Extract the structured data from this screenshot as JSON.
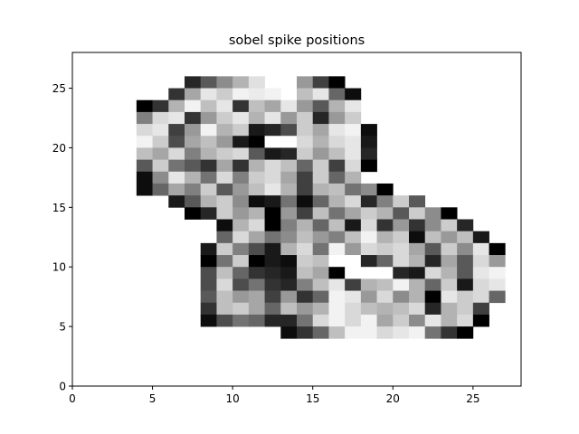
{
  "chart_data": {
    "type": "heatmap",
    "title": "sobel spike positions",
    "xlabel": "",
    "ylabel": "",
    "xlim": [
      0,
      28
    ],
    "ylim": [
      0,
      28
    ],
    "x_ticks": [
      0,
      5,
      10,
      15,
      20,
      25
    ],
    "y_ticks": [
      0,
      5,
      10,
      15,
      20,
      25
    ],
    "grid": false,
    "colormap": "gray",
    "value_meaning": "cell darkness, 0 = white, 1 = black",
    "cells": [
      [
        7,
        25,
        0.85
      ],
      [
        8,
        25,
        0.65
      ],
      [
        9,
        25,
        0.45
      ],
      [
        10,
        25,
        0.3
      ],
      [
        11,
        25,
        0.12
      ],
      [
        14,
        25,
        0.4
      ],
      [
        15,
        25,
        0.75
      ],
      [
        16,
        25,
        1.0
      ],
      [
        6,
        24,
        0.8
      ],
      [
        7,
        24,
        0.35
      ],
      [
        8,
        24,
        0.1
      ],
      [
        9,
        24,
        0.2
      ],
      [
        10,
        24,
        0.05
      ],
      [
        11,
        24,
        0.08
      ],
      [
        12,
        24,
        0.05
      ],
      [
        14,
        24,
        0.25
      ],
      [
        15,
        24,
        0.1
      ],
      [
        16,
        24,
        0.6
      ],
      [
        17,
        24,
        0.95
      ],
      [
        4,
        23,
        1.0
      ],
      [
        5,
        23,
        0.8
      ],
      [
        6,
        23,
        0.3
      ],
      [
        7,
        23,
        0.05
      ],
      [
        8,
        23,
        0.25
      ],
      [
        9,
        23,
        0.1
      ],
      [
        10,
        23,
        0.8
      ],
      [
        11,
        23,
        0.25
      ],
      [
        12,
        23,
        0.35
      ],
      [
        13,
        23,
        0.1
      ],
      [
        14,
        23,
        0.4
      ],
      [
        15,
        23,
        0.65
      ],
      [
        16,
        23,
        0.3
      ],
      [
        17,
        23,
        0.1
      ],
      [
        4,
        22,
        0.5
      ],
      [
        5,
        22,
        0.15
      ],
      [
        6,
        22,
        0.1
      ],
      [
        7,
        22,
        0.8
      ],
      [
        8,
        22,
        0.4
      ],
      [
        9,
        22,
        0.2
      ],
      [
        10,
        22,
        0.1
      ],
      [
        11,
        22,
        0.3
      ],
      [
        12,
        22,
        0.1
      ],
      [
        13,
        22,
        0.4
      ],
      [
        14,
        22,
        0.2
      ],
      [
        15,
        22,
        0.85
      ],
      [
        16,
        22,
        0.4
      ],
      [
        17,
        22,
        0.2
      ],
      [
        4,
        21,
        0.15
      ],
      [
        5,
        21,
        0.1
      ],
      [
        6,
        21,
        0.75
      ],
      [
        7,
        21,
        0.4
      ],
      [
        8,
        21,
        0.05
      ],
      [
        9,
        21,
        0.3
      ],
      [
        10,
        21,
        0.2
      ],
      [
        11,
        21,
        0.9
      ],
      [
        12,
        21,
        0.85
      ],
      [
        13,
        21,
        0.7
      ],
      [
        14,
        21,
        0.2
      ],
      [
        15,
        21,
        0.35
      ],
      [
        16,
        21,
        0.1
      ],
      [
        17,
        21,
        0.05
      ],
      [
        18,
        21,
        0.95
      ],
      [
        4,
        20,
        0.05
      ],
      [
        5,
        20,
        0.2
      ],
      [
        6,
        20,
        0.7
      ],
      [
        7,
        20,
        0.35
      ],
      [
        8,
        20,
        0.25
      ],
      [
        9,
        20,
        0.4
      ],
      [
        10,
        20,
        0.9
      ],
      [
        11,
        20,
        1.0
      ],
      [
        12,
        20,
        0.0
      ],
      [
        13,
        20,
        0.0
      ],
      [
        14,
        20,
        0.15
      ],
      [
        15,
        20,
        0.3
      ],
      [
        16,
        20,
        0.15
      ],
      [
        17,
        20,
        0.1
      ],
      [
        18,
        20,
        0.9
      ],
      [
        4,
        19,
        0.25
      ],
      [
        5,
        19,
        0.35
      ],
      [
        6,
        19,
        0.15
      ],
      [
        7,
        19,
        0.5
      ],
      [
        8,
        19,
        0.3
      ],
      [
        9,
        19,
        0.2
      ],
      [
        10,
        19,
        0.15
      ],
      [
        11,
        19,
        0.65
      ],
      [
        12,
        19,
        0.9
      ],
      [
        13,
        19,
        0.85
      ],
      [
        14,
        19,
        0.2
      ],
      [
        15,
        19,
        0.4
      ],
      [
        16,
        19,
        0.25
      ],
      [
        17,
        19,
        0.1
      ],
      [
        18,
        19,
        0.85
      ],
      [
        4,
        18,
        0.65
      ],
      [
        5,
        18,
        0.2
      ],
      [
        6,
        18,
        0.55
      ],
      [
        7,
        18,
        0.65
      ],
      [
        8,
        18,
        0.8
      ],
      [
        9,
        18,
        0.35
      ],
      [
        10,
        18,
        0.8
      ],
      [
        11,
        18,
        0.3
      ],
      [
        12,
        18,
        0.15
      ],
      [
        13,
        18,
        0.25
      ],
      [
        14,
        18,
        0.6
      ],
      [
        15,
        18,
        0.2
      ],
      [
        16,
        18,
        0.75
      ],
      [
        17,
        18,
        0.15
      ],
      [
        18,
        18,
        1.0
      ],
      [
        4,
        17,
        0.95
      ],
      [
        5,
        17,
        0.45
      ],
      [
        6,
        17,
        0.1
      ],
      [
        7,
        17,
        0.3
      ],
      [
        8,
        17,
        0.55
      ],
      [
        9,
        17,
        0.15
      ],
      [
        10,
        17,
        0.5
      ],
      [
        11,
        17,
        0.2
      ],
      [
        12,
        17,
        0.15
      ],
      [
        13,
        17,
        0.35
      ],
      [
        14,
        17,
        0.75
      ],
      [
        15,
        17,
        0.2
      ],
      [
        16,
        17,
        0.6
      ],
      [
        17,
        17,
        0.3
      ],
      [
        4,
        16,
        0.95
      ],
      [
        5,
        16,
        0.6
      ],
      [
        6,
        16,
        0.35
      ],
      [
        7,
        16,
        0.5
      ],
      [
        8,
        16,
        0.2
      ],
      [
        9,
        16,
        0.65
      ],
      [
        10,
        16,
        0.4
      ],
      [
        11,
        16,
        0.25
      ],
      [
        12,
        16,
        0.1
      ],
      [
        13,
        16,
        0.3
      ],
      [
        14,
        16,
        0.75
      ],
      [
        15,
        16,
        0.3
      ],
      [
        16,
        16,
        0.25
      ],
      [
        17,
        16,
        0.55
      ],
      [
        18,
        16,
        0.45
      ],
      [
        19,
        16,
        1.0
      ],
      [
        6,
        15,
        0.9
      ],
      [
        7,
        15,
        0.65
      ],
      [
        8,
        15,
        0.3
      ],
      [
        9,
        15,
        0.2
      ],
      [
        10,
        15,
        0.45
      ],
      [
        11,
        15,
        0.95
      ],
      [
        12,
        15,
        0.9
      ],
      [
        13,
        15,
        0.55
      ],
      [
        14,
        15,
        0.95
      ],
      [
        15,
        15,
        0.6
      ],
      [
        16,
        15,
        0.3
      ],
      [
        17,
        15,
        0.15
      ],
      [
        18,
        15,
        0.85
      ],
      [
        19,
        15,
        0.5
      ],
      [
        20,
        15,
        0.2
      ],
      [
        21,
        15,
        0.65
      ],
      [
        7,
        14,
        1.0
      ],
      [
        8,
        14,
        0.85
      ],
      [
        9,
        14,
        0.2
      ],
      [
        10,
        14,
        0.4
      ],
      [
        11,
        14,
        0.3
      ],
      [
        12,
        14,
        1.0
      ],
      [
        13,
        14,
        0.4
      ],
      [
        14,
        14,
        0.75
      ],
      [
        15,
        14,
        0.25
      ],
      [
        16,
        14,
        0.55
      ],
      [
        17,
        14,
        0.35
      ],
      [
        18,
        14,
        0.2
      ],
      [
        19,
        14,
        0.3
      ],
      [
        20,
        14,
        0.65
      ],
      [
        21,
        14,
        0.2
      ],
      [
        22,
        14,
        0.45
      ],
      [
        23,
        14,
        1.0
      ],
      [
        9,
        13,
        0.95
      ],
      [
        10,
        13,
        0.3
      ],
      [
        11,
        13,
        0.15
      ],
      [
        12,
        13,
        1.0
      ],
      [
        13,
        13,
        0.5
      ],
      [
        14,
        13,
        0.3
      ],
      [
        15,
        13,
        0.6
      ],
      [
        16,
        13,
        0.25
      ],
      [
        17,
        13,
        0.9
      ],
      [
        18,
        13,
        0.15
      ],
      [
        19,
        13,
        0.8
      ],
      [
        20,
        13,
        0.4
      ],
      [
        21,
        13,
        0.8
      ],
      [
        22,
        13,
        0.45
      ],
      [
        23,
        13,
        0.2
      ],
      [
        24,
        13,
        0.85
      ],
      [
        9,
        12,
        0.6
      ],
      [
        10,
        12,
        0.15
      ],
      [
        11,
        12,
        0.35
      ],
      [
        12,
        12,
        0.55
      ],
      [
        13,
        12,
        0.45
      ],
      [
        14,
        12,
        0.25
      ],
      [
        15,
        12,
        0.4
      ],
      [
        16,
        12,
        0.5
      ],
      [
        17,
        12,
        0.25
      ],
      [
        18,
        12,
        0.05
      ],
      [
        19,
        12,
        0.3
      ],
      [
        20,
        12,
        0.2
      ],
      [
        21,
        12,
        0.95
      ],
      [
        22,
        12,
        0.25
      ],
      [
        23,
        12,
        0.4
      ],
      [
        24,
        12,
        0.25
      ],
      [
        25,
        12,
        0.9
      ],
      [
        8,
        11,
        0.9
      ],
      [
        9,
        11,
        0.2
      ],
      [
        10,
        11,
        0.5
      ],
      [
        11,
        11,
        0.7
      ],
      [
        12,
        11,
        0.9
      ],
      [
        13,
        11,
        0.3
      ],
      [
        14,
        11,
        0.15
      ],
      [
        15,
        11,
        0.55
      ],
      [
        16,
        11,
        0.05
      ],
      [
        17,
        11,
        0.4
      ],
      [
        18,
        11,
        0.15
      ],
      [
        19,
        11,
        0.2
      ],
      [
        20,
        11,
        0.15
      ],
      [
        21,
        11,
        0.35
      ],
      [
        22,
        11,
        0.65
      ],
      [
        23,
        11,
        0.2
      ],
      [
        24,
        11,
        0.45
      ],
      [
        25,
        11,
        0.1
      ],
      [
        26,
        11,
        1.0
      ],
      [
        8,
        10,
        1.0
      ],
      [
        9,
        10,
        0.55
      ],
      [
        10,
        10,
        0.2
      ],
      [
        11,
        10,
        1.0
      ],
      [
        12,
        10,
        0.9
      ],
      [
        13,
        10,
        0.95
      ],
      [
        14,
        10,
        0.2
      ],
      [
        15,
        10,
        0.25
      ],
      [
        16,
        10,
        0.0
      ],
      [
        17,
        10,
        0.0
      ],
      [
        18,
        10,
        0.85
      ],
      [
        19,
        10,
        0.6
      ],
      [
        20,
        10,
        0.15
      ],
      [
        21,
        10,
        0.3
      ],
      [
        22,
        10,
        0.85
      ],
      [
        23,
        10,
        0.35
      ],
      [
        24,
        10,
        0.65
      ],
      [
        25,
        10,
        0.15
      ],
      [
        26,
        10,
        0.4
      ],
      [
        8,
        9,
        0.7
      ],
      [
        9,
        9,
        0.25
      ],
      [
        10,
        9,
        0.6
      ],
      [
        11,
        9,
        0.8
      ],
      [
        12,
        9,
        0.85
      ],
      [
        13,
        9,
        0.9
      ],
      [
        14,
        9,
        0.25
      ],
      [
        15,
        9,
        0.35
      ],
      [
        16,
        9,
        1.0
      ],
      [
        17,
        9,
        0.0
      ],
      [
        18,
        9,
        0.0
      ],
      [
        19,
        9,
        0.0
      ],
      [
        20,
        9,
        0.85
      ],
      [
        21,
        9,
        0.9
      ],
      [
        22,
        9,
        0.15
      ],
      [
        23,
        9,
        0.3
      ],
      [
        24,
        9,
        0.65
      ],
      [
        25,
        9,
        0.1
      ],
      [
        26,
        9,
        0.05
      ],
      [
        8,
        8,
        0.7
      ],
      [
        9,
        8,
        0.15
      ],
      [
        10,
        8,
        0.7
      ],
      [
        11,
        8,
        0.55
      ],
      [
        12,
        8,
        0.8
      ],
      [
        13,
        8,
        0.85
      ],
      [
        14,
        8,
        0.5
      ],
      [
        15,
        8,
        0.25
      ],
      [
        16,
        8,
        0.1
      ],
      [
        17,
        8,
        0.75
      ],
      [
        18,
        8,
        0.3
      ],
      [
        19,
        8,
        0.25
      ],
      [
        20,
        8,
        0.05
      ],
      [
        21,
        8,
        0.3
      ],
      [
        22,
        8,
        0.6
      ],
      [
        23,
        8,
        0.2
      ],
      [
        24,
        8,
        0.9
      ],
      [
        25,
        8,
        0.15
      ],
      [
        26,
        8,
        0.1
      ],
      [
        8,
        7,
        0.65
      ],
      [
        9,
        7,
        0.25
      ],
      [
        10,
        7,
        0.4
      ],
      [
        11,
        7,
        0.35
      ],
      [
        12,
        7,
        0.75
      ],
      [
        13,
        7,
        0.4
      ],
      [
        14,
        7,
        0.8
      ],
      [
        15,
        7,
        0.6
      ],
      [
        16,
        7,
        0.05
      ],
      [
        17,
        7,
        0.1
      ],
      [
        18,
        7,
        0.4
      ],
      [
        19,
        7,
        0.15
      ],
      [
        20,
        7,
        0.45
      ],
      [
        21,
        7,
        0.3
      ],
      [
        22,
        7,
        1.0
      ],
      [
        23,
        7,
        0.1
      ],
      [
        24,
        7,
        0.2
      ],
      [
        25,
        7,
        0.15
      ],
      [
        26,
        7,
        0.6
      ],
      [
        8,
        6,
        0.8
      ],
      [
        9,
        6,
        0.25
      ],
      [
        10,
        6,
        0.2
      ],
      [
        11,
        6,
        0.35
      ],
      [
        12,
        6,
        0.6
      ],
      [
        13,
        6,
        0.25
      ],
      [
        14,
        6,
        0.4
      ],
      [
        15,
        6,
        0.3
      ],
      [
        16,
        6,
        0.05
      ],
      [
        17,
        6,
        0.15
      ],
      [
        18,
        6,
        0.25
      ],
      [
        19,
        6,
        0.3
      ],
      [
        20,
        6,
        0.25
      ],
      [
        21,
        6,
        0.15
      ],
      [
        22,
        6,
        0.85
      ],
      [
        23,
        6,
        0.3
      ],
      [
        24,
        6,
        0.2
      ],
      [
        25,
        6,
        0.75
      ],
      [
        8,
        5,
        0.95
      ],
      [
        9,
        5,
        0.7
      ],
      [
        10,
        5,
        0.55
      ],
      [
        11,
        5,
        0.6
      ],
      [
        12,
        5,
        0.85
      ],
      [
        13,
        5,
        0.85
      ],
      [
        14,
        5,
        0.55
      ],
      [
        15,
        5,
        0.15
      ],
      [
        16,
        5,
        0.05
      ],
      [
        17,
        5,
        0.15
      ],
      [
        18,
        5,
        0.05
      ],
      [
        19,
        5,
        0.35
      ],
      [
        20,
        5,
        0.2
      ],
      [
        21,
        5,
        0.45
      ],
      [
        22,
        5,
        0.1
      ],
      [
        23,
        5,
        0.3
      ],
      [
        24,
        5,
        0.15
      ],
      [
        25,
        5,
        1.0
      ],
      [
        13,
        4,
        0.95
      ],
      [
        14,
        4,
        0.8
      ],
      [
        15,
        4,
        0.6
      ],
      [
        16,
        4,
        0.25
      ],
      [
        17,
        4,
        0.05
      ],
      [
        18,
        4,
        0.05
      ],
      [
        19,
        4,
        0.15
      ],
      [
        20,
        4,
        0.1
      ],
      [
        21,
        4,
        0.05
      ],
      [
        22,
        4,
        0.55
      ],
      [
        23,
        4,
        0.8
      ],
      [
        24,
        4,
        1.0
      ]
    ]
  }
}
